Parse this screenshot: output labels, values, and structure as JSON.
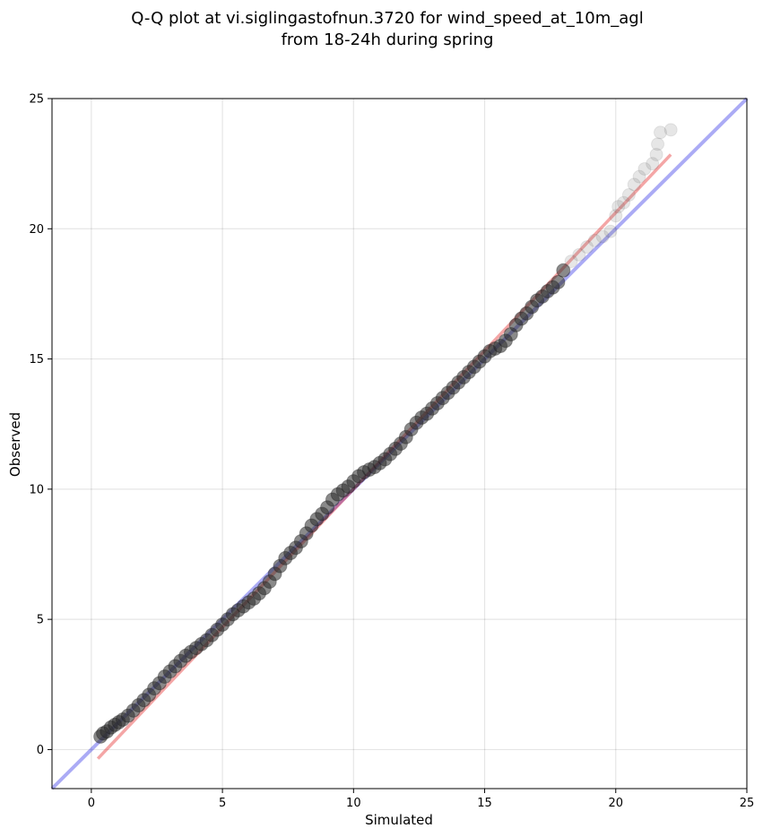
{
  "chart_data": {
    "type": "scatter",
    "title_line1": "Q-Q plot at vi.siglingastofnun.3720 for wind_speed_at_10m_agl",
    "title_line2": "from 18-24h during spring",
    "xlabel": "Simulated",
    "ylabel": "Observed",
    "xlim": [
      -1.5,
      25
    ],
    "ylim": [
      -1.5,
      25
    ],
    "xticks": [
      0,
      5,
      10,
      15,
      20,
      25
    ],
    "yticks": [
      0,
      5,
      10,
      15,
      20,
      25
    ],
    "grid": true,
    "reference_line": {
      "name": "1:1",
      "color": "#0000e0",
      "from": [
        -1.5,
        -1.5
      ],
      "to": [
        25,
        25
      ]
    },
    "fit_line": {
      "color": "#e00000",
      "from": [
        0.25,
        -0.35
      ],
      "to": [
        22.1,
        22.85
      ]
    },
    "points": [
      [
        0.35,
        0.5
      ],
      [
        0.45,
        0.62
      ],
      [
        0.6,
        0.7
      ],
      [
        0.75,
        0.85
      ],
      [
        0.9,
        0.95
      ],
      [
        1.05,
        1.05
      ],
      [
        1.2,
        1.15
      ],
      [
        1.4,
        1.3
      ],
      [
        1.6,
        1.5
      ],
      [
        1.8,
        1.7
      ],
      [
        2.0,
        1.9
      ],
      [
        2.2,
        2.1
      ],
      [
        2.4,
        2.35
      ],
      [
        2.6,
        2.55
      ],
      [
        2.8,
        2.8
      ],
      [
        3.0,
        3.0
      ],
      [
        3.2,
        3.2
      ],
      [
        3.4,
        3.4
      ],
      [
        3.6,
        3.6
      ],
      [
        3.8,
        3.75
      ],
      [
        4.0,
        3.9
      ],
      [
        4.2,
        4.05
      ],
      [
        4.4,
        4.2
      ],
      [
        4.6,
        4.4
      ],
      [
        4.8,
        4.6
      ],
      [
        5.0,
        4.8
      ],
      [
        5.2,
        5.0
      ],
      [
        5.4,
        5.2
      ],
      [
        5.6,
        5.35
      ],
      [
        5.8,
        5.5
      ],
      [
        6.0,
        5.65
      ],
      [
        6.2,
        5.8
      ],
      [
        6.4,
        6.0
      ],
      [
        6.6,
        6.2
      ],
      [
        6.8,
        6.45
      ],
      [
        7.0,
        6.75
      ],
      [
        7.2,
        7.05
      ],
      [
        7.4,
        7.35
      ],
      [
        7.6,
        7.55
      ],
      [
        7.8,
        7.75
      ],
      [
        8.0,
        8.0
      ],
      [
        8.2,
        8.3
      ],
      [
        8.4,
        8.6
      ],
      [
        8.6,
        8.85
      ],
      [
        8.8,
        9.05
      ],
      [
        9.0,
        9.3
      ],
      [
        9.2,
        9.6
      ],
      [
        9.4,
        9.8
      ],
      [
        9.6,
        9.95
      ],
      [
        9.8,
        10.1
      ],
      [
        10.0,
        10.3
      ],
      [
        10.2,
        10.5
      ],
      [
        10.4,
        10.65
      ],
      [
        10.6,
        10.75
      ],
      [
        10.8,
        10.85
      ],
      [
        11.0,
        11.0
      ],
      [
        11.2,
        11.15
      ],
      [
        11.4,
        11.35
      ],
      [
        11.6,
        11.55
      ],
      [
        11.8,
        11.75
      ],
      [
        12.0,
        12.0
      ],
      [
        12.2,
        12.3
      ],
      [
        12.4,
        12.55
      ],
      [
        12.6,
        12.75
      ],
      [
        12.8,
        12.9
      ],
      [
        13.0,
        13.1
      ],
      [
        13.2,
        13.3
      ],
      [
        13.4,
        13.5
      ],
      [
        13.6,
        13.7
      ],
      [
        13.8,
        13.9
      ],
      [
        14.0,
        14.1
      ],
      [
        14.2,
        14.3
      ],
      [
        14.4,
        14.5
      ],
      [
        14.6,
        14.7
      ],
      [
        14.8,
        14.9
      ],
      [
        15.0,
        15.1
      ],
      [
        15.2,
        15.3
      ],
      [
        15.4,
        15.4
      ],
      [
        15.6,
        15.5
      ],
      [
        15.8,
        15.7
      ],
      [
        16.0,
        15.95
      ],
      [
        16.2,
        16.3
      ],
      [
        16.4,
        16.55
      ],
      [
        16.6,
        16.75
      ],
      [
        16.8,
        17.0
      ],
      [
        17.0,
        17.25
      ],
      [
        17.2,
        17.4
      ],
      [
        17.4,
        17.6
      ],
      [
        17.6,
        17.75
      ],
      [
        17.8,
        17.95
      ],
      [
        18.0,
        18.4
      ],
      [
        18.3,
        18.75
      ],
      [
        18.6,
        19.0
      ],
      [
        18.9,
        19.3
      ],
      [
        19.2,
        19.55
      ],
      [
        19.5,
        19.7
      ],
      [
        19.8,
        19.9
      ],
      [
        20.0,
        20.5
      ],
      [
        20.1,
        20.85
      ],
      [
        20.3,
        21.0
      ],
      [
        20.5,
        21.3
      ],
      [
        20.7,
        21.7
      ],
      [
        20.9,
        22.0
      ],
      [
        21.1,
        22.3
      ],
      [
        21.4,
        22.5
      ],
      [
        21.55,
        22.85
      ],
      [
        21.6,
        23.25
      ],
      [
        21.7,
        23.7
      ],
      [
        22.1,
        23.8
      ]
    ]
  }
}
